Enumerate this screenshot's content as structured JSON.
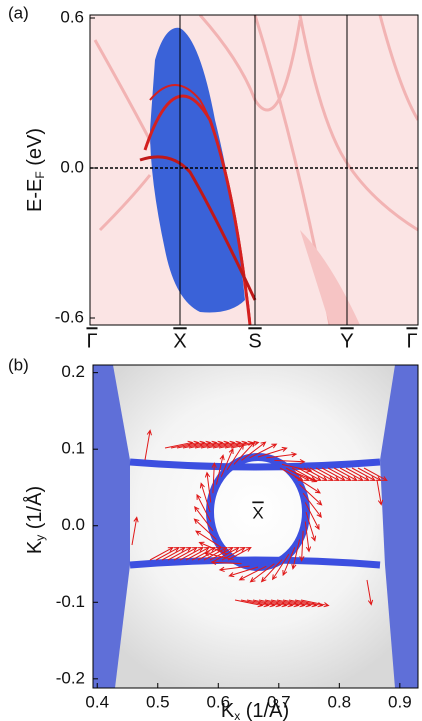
{
  "chart_data": [
    {
      "type": "band-map",
      "panel_label": "(a)",
      "ylabel": [
        "E-E",
        "F",
        " (eV)"
      ],
      "categories": [
        "Γ",
        "X",
        "S",
        "Y",
        "Γ"
      ],
      "ylim": [
        -0.628,
        0.612
      ],
      "yticks": [
        0.6,
        {
          "value": 0,
          "label": "0.0"
        },
        -0.6
      ],
      "fermi_level": 0
    },
    {
      "type": "spin-map",
      "panel_label": "(b)",
      "xlabel": [
        "K",
        "x",
        " (1/Å)"
      ],
      "ylabel": [
        "K",
        "y",
        " (1/Å)"
      ],
      "annotation": "X",
      "xlim": [
        0.393,
        0.93
      ],
      "ylim": [
        -0.212,
        0.21
      ],
      "xticks": [
        0.4,
        0.5,
        0.6,
        0.7,
        0.8,
        0.9
      ],
      "yticks": [
        0.2,
        0.1,
        {
          "value": 0,
          "label": "0.0"
        },
        -0.1,
        -0.2
      ]
    }
  ]
}
